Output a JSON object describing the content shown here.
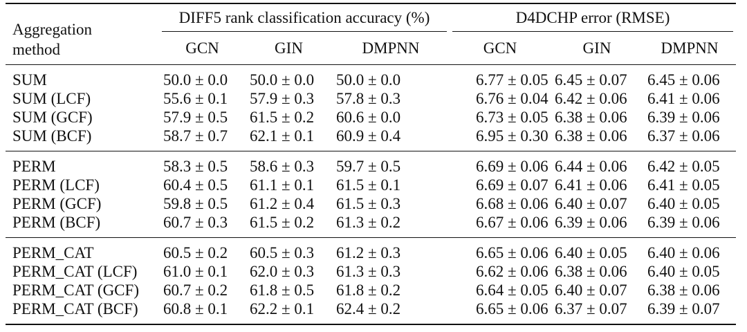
{
  "header": {
    "aggregation_line1": "Aggregation",
    "aggregation_line2": "method",
    "group1": "DIFF5 rank classification accuracy (%)",
    "group2": "D4DCHP error (RMSE)",
    "columns": [
      "GCN",
      "GIN",
      "DMPNN",
      "GCN",
      "GIN",
      "DMPNN"
    ]
  },
  "groups": [
    {
      "rows": [
        {
          "method": "SUM",
          "values": [
            "50.0 ± 0.0",
            "50.0 ± 0.0",
            "50.0 ± 0.0",
            "6.77 ± 0.05",
            "6.45 ± 0.07",
            "6.45 ± 0.06"
          ]
        },
        {
          "method": "SUM (LCF)",
          "values": [
            "55.6 ± 0.1",
            "57.9 ± 0.3",
            "57.8 ± 0.3",
            "6.76 ± 0.04",
            "6.42 ± 0.06",
            "6.41 ± 0.06"
          ]
        },
        {
          "method": "SUM (GCF)",
          "values": [
            "57.9 ± 0.5",
            "61.5 ± 0.2",
            "60.6 ± 0.0",
            "6.73 ± 0.05",
            "6.38 ± 0.06",
            "6.39 ± 0.06"
          ]
        },
        {
          "method": "SUM (BCF)",
          "values": [
            "58.7 ± 0.7",
            "62.1 ± 0.1",
            "60.9 ± 0.4",
            "6.95 ± 0.30",
            "6.38 ± 0.06",
            "6.37 ± 0.06"
          ]
        }
      ]
    },
    {
      "rows": [
        {
          "method": "PERM",
          "values": [
            "58.3 ± 0.5",
            "58.6 ± 0.3",
            "59.7 ± 0.5",
            "6.69 ± 0.06",
            "6.44 ± 0.06",
            "6.42 ± 0.05"
          ]
        },
        {
          "method": "PERM (LCF)",
          "values": [
            "60.4 ± 0.5",
            "61.1 ± 0.1",
            "61.5 ± 0.1",
            "6.69 ± 0.07",
            "6.41 ± 0.06",
            "6.41 ± 0.05"
          ]
        },
        {
          "method": "PERM (GCF)",
          "values": [
            "59.8 ± 0.5",
            "61.2 ± 0.4",
            "61.5 ± 0.3",
            "6.68 ± 0.06",
            "6.40 ± 0.07",
            "6.40 ± 0.05"
          ]
        },
        {
          "method": "PERM (BCF)",
          "values": [
            "60.7 ± 0.3",
            "61.5 ± 0.2",
            "61.3 ± 0.2",
            "6.67 ± 0.06",
            "6.39 ± 0.06",
            "6.39 ± 0.06"
          ]
        }
      ]
    },
    {
      "rows": [
        {
          "method": "PERM_CAT",
          "values": [
            "60.5 ± 0.2",
            "60.5 ± 0.3",
            "61.2 ± 0.3",
            "6.65 ± 0.06",
            "6.40 ± 0.05",
            "6.40 ± 0.06"
          ]
        },
        {
          "method": "PERM_CAT (LCF)",
          "values": [
            "61.0 ± 0.1",
            "62.0 ± 0.3",
            "61.3 ± 0.3",
            "6.62 ± 0.06",
            "6.38 ± 0.06",
            "6.40 ± 0.05"
          ]
        },
        {
          "method": "PERM_CAT (GCF)",
          "values": [
            "60.7 ± 0.2",
            "61.8 ± 0.5",
            "61.8 ± 0.2",
            "6.64 ± 0.05",
            "6.40 ± 0.07",
            "6.38 ± 0.06"
          ]
        },
        {
          "method": "PERM_CAT (BCF)",
          "values": [
            "60.8 ± 0.1",
            "62.2 ± 0.1",
            "62.4 ± 0.2",
            "6.65 ± 0.06",
            "6.37 ± 0.07",
            "6.39 ± 0.07"
          ]
        }
      ]
    }
  ]
}
